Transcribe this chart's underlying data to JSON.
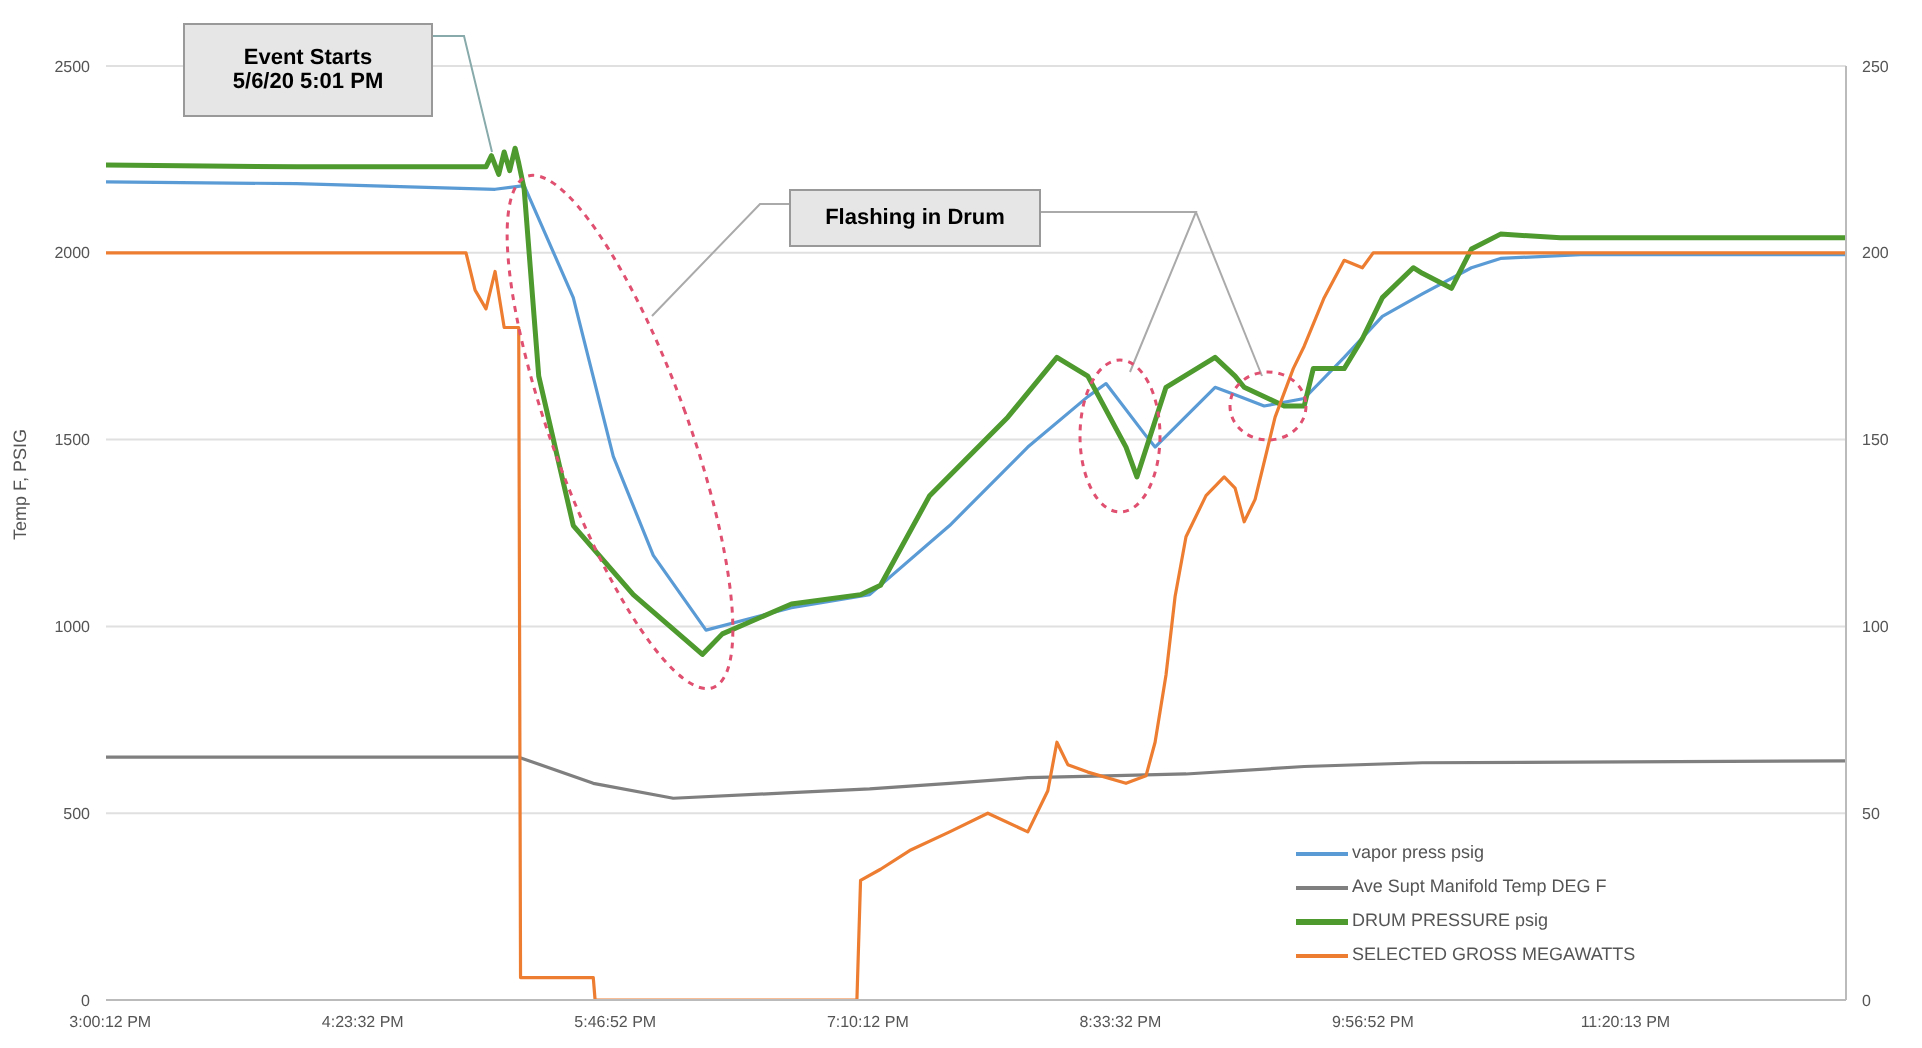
{
  "chart_data": {
    "type": "line",
    "ylabel": "Temp F, PSIG",
    "xlim": [
      14.98,
      24.55
    ],
    "xticks": [
      {
        "value": 15.0033,
        "label": "3:00:12 PM"
      },
      {
        "value": 16.3922,
        "label": "4:23:32 PM"
      },
      {
        "value": 17.7811,
        "label": "5:46:52 PM"
      },
      {
        "value": 19.17,
        "label": "7:10:12 PM"
      },
      {
        "value": 20.5589,
        "label": "8:33:32 PM"
      },
      {
        "value": 21.9478,
        "label": "9:56:52 PM"
      },
      {
        "value": 23.3369,
        "label": "11:20:13 PM"
      }
    ],
    "ylim": [
      0,
      2500
    ],
    "yticks": [
      0,
      500,
      1000,
      1500,
      2000,
      2500
    ],
    "y2lim": [
      0,
      250
    ],
    "y2ticks": [
      0,
      50,
      100,
      150,
      200,
      250
    ],
    "grid": "y",
    "legend": "bottom right",
    "marker": "none",
    "line_style": "solid",
    "annotations": [
      "Event Starts\n5/6/20  5:01 PM",
      "Flashing in Drum"
    ],
    "series": [
      {
        "name": "vapor press psig",
        "color": "#5b9bd5",
        "x": [
          14.98,
          16.03,
          17.12,
          17.28,
          17.55,
          17.77,
          17.99,
          18.28,
          18.75,
          19.18,
          19.62,
          20.05,
          20.38,
          20.48,
          20.7,
          20.75,
          21.08,
          21.19,
          21.35,
          21.57,
          21.79,
          22.0,
          22.22,
          22.49,
          22.65,
          23.09,
          24.55
        ],
        "values": [
          2190,
          2185,
          2170,
          2180,
          1880,
          1455,
          1190,
          990,
          1050,
          1085,
          1270,
          1480,
          1615,
          1650,
          1510,
          1480,
          1640,
          1620,
          1590,
          1610,
          1720,
          1830,
          1890,
          1960,
          1985,
          1995,
          1995
        ]
      },
      {
        "name": "Ave Supt Manifold Temp DEG F",
        "color": "#7f7f7f",
        "x": [
          14.98,
          16.03,
          17.25,
          17.66,
          18.1,
          18.75,
          19.18,
          19.62,
          20.05,
          20.48,
          20.92,
          21.57,
          22.22,
          24.55
        ],
        "values": [
          650,
          650,
          650,
          580,
          540,
          555,
          565,
          580,
          595,
          600,
          605,
          625,
          635,
          640
        ]
      },
      {
        "name": "DRUM PRESSURE psig",
        "color": "#4e9a2f",
        "x": [
          14.98,
          16.03,
          17.07,
          17.1,
          17.14,
          17.17,
          17.2,
          17.23,
          17.25,
          17.28,
          17.36,
          17.55,
          17.88,
          18.26,
          18.37,
          18.75,
          19.13,
          19.24,
          19.51,
          19.94,
          20.21,
          20.38,
          20.59,
          20.65,
          20.81,
          21.08,
          21.19,
          21.24,
          21.46,
          21.57,
          21.62,
          21.79,
          21.89,
          22.0,
          22.17,
          22.22,
          22.38,
          22.49,
          22.65,
          22.98,
          24.55
        ],
        "values": [
          2235,
          2230,
          2230,
          2260,
          2210,
          2270,
          2220,
          2280,
          2240,
          2170,
          1670,
          1270,
          1085,
          925,
          980,
          1060,
          1085,
          1110,
          1350,
          1560,
          1720,
          1670,
          1480,
          1400,
          1640,
          1720,
          1670,
          1640,
          1590,
          1590,
          1690,
          1690,
          1770,
          1880,
          1960,
          1945,
          1905,
          2010,
          2050,
          2040,
          2040
        ]
      },
      {
        "name": "SELECTED GROSS MEGAWATTS",
        "color": "#ed7d31",
        "axis": "y2",
        "x": [
          14.98,
          16.03,
          16.96,
          17.01,
          17.07,
          17.12,
          17.17,
          17.25,
          17.26,
          17.66,
          17.67,
          19.11,
          19.13,
          19.24,
          19.4,
          19.62,
          19.83,
          20.05,
          20.16,
          20.21,
          20.27,
          20.38,
          20.59,
          20.7,
          20.75,
          20.81,
          20.86,
          20.92,
          21.03,
          21.13,
          21.19,
          21.24,
          21.3,
          21.41,
          21.51,
          21.57,
          21.68,
          21.79,
          21.89,
          21.95,
          22.49,
          24.55
        ],
        "values": [
          200,
          200,
          200,
          190,
          185,
          195,
          180,
          180,
          6,
          6,
          0,
          0,
          32,
          35,
          40,
          45,
          50,
          45,
          56,
          69,
          63,
          61,
          58,
          60,
          69,
          87,
          108,
          124,
          135,
          140,
          137,
          128,
          134,
          156,
          169,
          175,
          188,
          198,
          196,
          200,
          200,
          200
        ]
      }
    ]
  }
}
